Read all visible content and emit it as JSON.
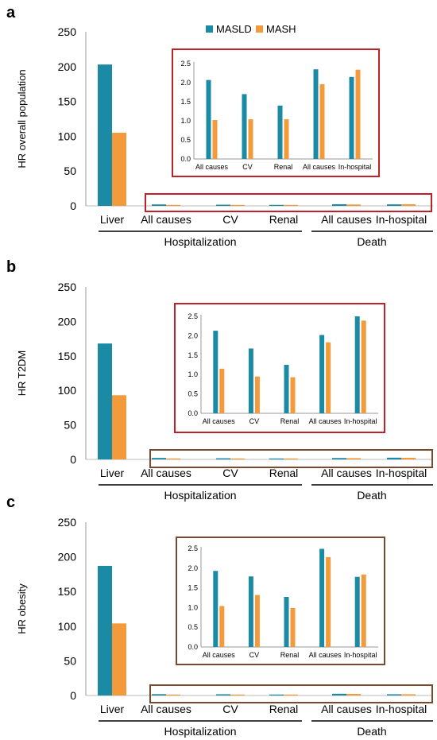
{
  "colors": {
    "masld": "#1b8aa5",
    "mash": "#f39b3a",
    "inset_box_a": "#c0202a",
    "inset_box_b": "#c0202a",
    "inset_box_c": "#7a4a2f",
    "highlight_box_a": "#c0202a",
    "highlight_box_b": "#7a4a2f",
    "highlight_box_c": "#7a4a2f"
  },
  "legend": {
    "masld": "MASLD",
    "mash": "MASH"
  },
  "groups": {
    "hospitalization": "Hospitalization",
    "death": "Death"
  },
  "chart_data": [
    {
      "panel": "a",
      "type": "bar",
      "ylabel": "HR overall population",
      "ylim": [
        0,
        250
      ],
      "yticks": [
        0,
        50,
        100,
        150,
        200,
        250
      ],
      "categories": [
        "Liver",
        "All causes",
        "CV",
        "Renal",
        "All causes",
        "In-hospital"
      ],
      "series": [
        {
          "name": "MASLD",
          "values": [
            203,
            2.07,
            1.7,
            1.4,
            2.35,
            2.15
          ]
        },
        {
          "name": "MASH",
          "values": [
            105,
            1.02,
            1.04,
            1.04,
            1.96,
            2.34
          ]
        }
      ],
      "inset": {
        "categories": [
          "All causes",
          "CV",
          "Renal",
          "All causes",
          "In-hospital"
        ],
        "yticks": [
          "0.0",
          "0.5",
          "1.0",
          "1.5",
          "2.0",
          "2.5"
        ],
        "ylim": [
          0,
          2.5
        ],
        "series": [
          {
            "name": "MASLD",
            "values": [
              2.07,
              1.7,
              1.4,
              2.35,
              2.15
            ]
          },
          {
            "name": "MASH",
            "values": [
              1.02,
              1.04,
              1.04,
              1.96,
              2.34
            ]
          }
        ]
      }
    },
    {
      "panel": "b",
      "type": "bar",
      "ylabel": "HR T2DM",
      "ylim": [
        0,
        250
      ],
      "yticks": [
        0,
        50,
        100,
        150,
        200,
        250
      ],
      "categories": [
        "Liver",
        "All causes",
        "CV",
        "Renal",
        "All causes",
        "In-hospital"
      ],
      "series": [
        {
          "name": "MASLD",
          "values": [
            168,
            2.13,
            1.67,
            1.25,
            2.02,
            2.5
          ]
        },
        {
          "name": "MASH",
          "values": [
            93,
            1.15,
            0.95,
            0.93,
            1.83,
            2.39
          ]
        }
      ],
      "inset": {
        "categories": [
          "All causes",
          "CV",
          "Renal",
          "All causes",
          "In-hospital"
        ],
        "yticks": [
          "0.0",
          "0.5",
          "1.0",
          "1.5",
          "2.0",
          "2.5"
        ],
        "ylim": [
          0,
          2.5
        ],
        "series": [
          {
            "name": "MASLD",
            "values": [
              2.13,
              1.67,
              1.25,
              2.02,
              2.5
            ]
          },
          {
            "name": "MASH",
            "values": [
              1.15,
              0.95,
              0.93,
              1.83,
              2.39
            ]
          }
        ]
      }
    },
    {
      "panel": "c",
      "type": "bar",
      "ylabel": "HR obesity",
      "ylim": [
        0,
        250
      ],
      "yticks": [
        0,
        50,
        100,
        150,
        200,
        250
      ],
      "categories": [
        "Liver",
        "All causes",
        "CV",
        "Renal",
        "All causes",
        "In-hospital"
      ],
      "series": [
        {
          "name": "MASLD",
          "values": [
            187,
            1.93,
            1.79,
            1.27,
            2.49,
            1.78
          ]
        },
        {
          "name": "MASH",
          "values": [
            104,
            1.04,
            1.32,
            0.99,
            2.28,
            1.84
          ]
        }
      ],
      "inset": {
        "categories": [
          "All causes",
          "CV",
          "Renal",
          "All causes",
          "In-hospital"
        ],
        "yticks": [
          "0.0",
          "0.5",
          "1.0",
          "1.5",
          "2.0",
          "2.5"
        ],
        "ylim": [
          0,
          2.5
        ],
        "series": [
          {
            "name": "MASLD",
            "values": [
              1.93,
              1.79,
              1.27,
              2.49,
              1.78
            ]
          },
          {
            "name": "MASH",
            "values": [
              1.04,
              1.32,
              0.99,
              2.28,
              1.84
            ]
          }
        ]
      }
    }
  ]
}
